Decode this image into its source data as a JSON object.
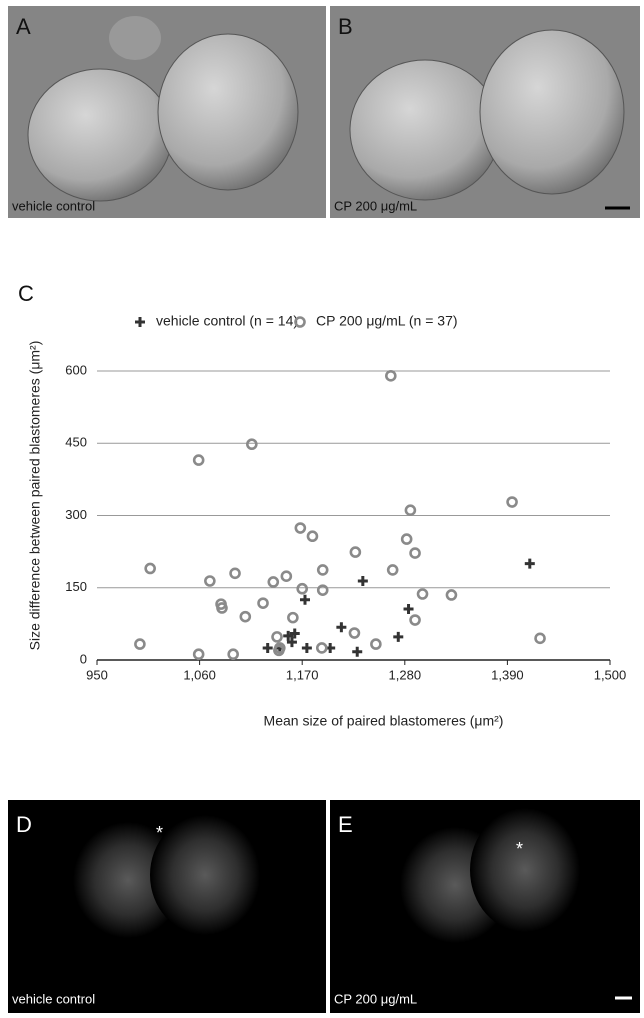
{
  "panels": {
    "a": {
      "letter": "A",
      "caption": "vehicle control"
    },
    "b": {
      "letter": "B",
      "caption": "CP 200 μg/mL"
    },
    "c": {
      "letter": "C"
    },
    "d": {
      "letter": "D",
      "caption": "vehicle control"
    },
    "e": {
      "letter": "E",
      "caption": "CP 200 μg/mL"
    }
  },
  "chart_data": {
    "type": "scatter",
    "x_label": "Mean size of paired blastomeres (μm²)",
    "y_label": "Size difference between paired blastomeres (μm²)",
    "xlim": [
      950,
      1500
    ],
    "ylim": [
      0,
      600
    ],
    "xticks": [
      950,
      {
        "value": 1060,
        "label": "1,060"
      },
      {
        "value": 1170,
        "label": "1,170"
      },
      {
        "value": 1280,
        "label": "1,280"
      },
      {
        "value": 1390,
        "label": "1,390"
      },
      {
        "value": 1500,
        "label": "1,500"
      }
    ],
    "yticks": [
      0,
      150,
      300,
      450,
      600
    ],
    "grid": true,
    "series": [
      {
        "name": "vehicle control (n = 14)",
        "color": "#333333",
        "marker": "plus",
        "x": [
          1133,
          1146,
          1155,
          1159,
          1162,
          1173,
          1175,
          1200,
          1212,
          1229,
          1235,
          1273,
          1284,
          1414
        ],
        "values": [
          25,
          25,
          50,
          37,
          55,
          125,
          25,
          25,
          68,
          17,
          164,
          48,
          106,
          200
        ]
      },
      {
        "name": "CP 200 μg/mL (n = 37)",
        "color": "#8a8a8a",
        "marker": "circle",
        "x": [
          1007,
          996,
          1059,
          1059,
          1116,
          1265,
          1395,
          1071,
          1083,
          1084,
          1096,
          1098,
          1109,
          1128,
          1139,
          1143,
          1145,
          1146,
          1168,
          1170,
          1181,
          1160,
          1153,
          1191,
          1192,
          1192,
          1226,
          1227,
          1249,
          1267,
          1282,
          1286,
          1291,
          1291,
          1299,
          1330,
          1425
        ],
        "values": [
          190,
          33,
          415,
          12,
          448,
          590,
          328,
          164,
          116,
          108,
          12,
          180,
          90,
          118,
          162,
          48,
          20,
          25,
          274,
          148,
          257,
          88,
          174,
          25,
          187,
          145,
          56,
          224,
          33,
          187,
          251,
          311,
          222,
          83,
          137,
          135,
          45
        ]
      }
    ]
  }
}
